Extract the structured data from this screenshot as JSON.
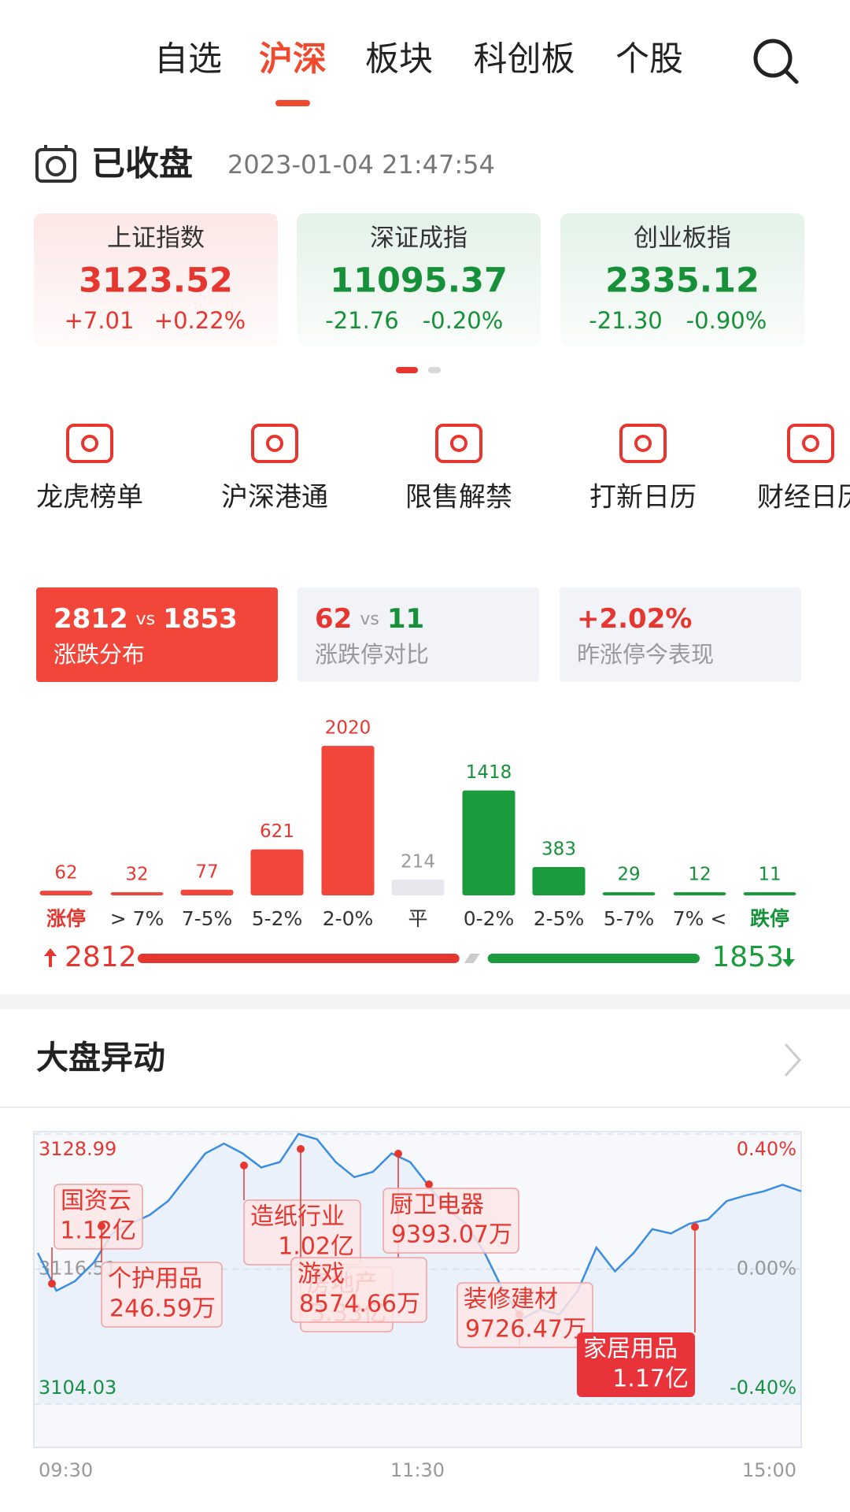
{
  "tabs": {
    "items": [
      "自选",
      "沪深",
      "板块",
      "科创板",
      "个股"
    ],
    "active": 1
  },
  "status": {
    "label": "已收盘",
    "datetime": "2023-01-04  21:47:54"
  },
  "indices": [
    {
      "name": "上证指数",
      "value": "3123.52",
      "change": "+7.01",
      "pct": "+0.22%",
      "color": "#e5372f"
    },
    {
      "name": "深证成指",
      "value": "11095.37",
      "change": "-21.76",
      "pct": "-0.20%",
      "color": "#16913a"
    },
    {
      "name": "创业板指",
      "value": "2335.12",
      "change": "-21.30",
      "pct": "-0.90%",
      "color": "#16913a"
    }
  ],
  "shortcuts": [
    "龙虎榜单",
    "沪深港通",
    "限售解禁",
    "打新日历",
    "财经日历"
  ],
  "summary_cards": [
    {
      "up": "2812",
      "vs": "vs",
      "down": "1853",
      "label": "涨跌分布"
    },
    {
      "up": "62",
      "vs": "vs",
      "down": "11",
      "label": "涨跌停对比"
    },
    {
      "value": "+2.02%",
      "label": "昨涨停今表现"
    }
  ],
  "section_title": "大盘异动",
  "chart_data": [
    {
      "type": "bar",
      "categories": [
        "涨停",
        "> 7%",
        "7-5%",
        "5-2%",
        "2-0%",
        "平",
        "0-2%",
        "2-5%",
        "5-7%",
        "7% <",
        "跌停"
      ],
      "values": [
        62,
        32,
        77,
        621,
        2020,
        214,
        1418,
        383,
        29,
        12,
        11
      ],
      "colors": [
        "#f2463a",
        "#f2463a",
        "#f2463a",
        "#f2463a",
        "#f2463a",
        "#e6e8ee",
        "#1a9b3c",
        "#1a9b3c",
        "#1a9b3c",
        "#1a9b3c",
        "#1a9b3c"
      ],
      "value_label_colors": [
        "#e5372f",
        "#e5372f",
        "#e5372f",
        "#e5372f",
        "#e5372f",
        "#999999",
        "#16913a",
        "#16913a",
        "#16913a",
        "#16913a",
        "#16913a"
      ],
      "category_colors": [
        "#e5372f",
        "#333333",
        "#333333",
        "#333333",
        "#333333",
        "#333333",
        "#333333",
        "#333333",
        "#333333",
        "#333333",
        "#16913a"
      ]
    },
    {
      "type": "split",
      "values": [
        2812,
        1853
      ],
      "colors": [
        "#e5372f",
        "#1a9b3c"
      ]
    },
    {
      "type": "line",
      "color": "#3b8de0",
      "values": [
        3118.0,
        3114.5,
        3115.4,
        3117.1,
        3119.8,
        3120.7,
        3121.5,
        3122.8,
        3125.0,
        3127.2,
        3128.1,
        3127.2,
        3125.9,
        3126.4,
        3129.0,
        3128.5,
        3126.4,
        3125.0,
        3125.5,
        3127.2,
        3126.4,
        3124.2,
        3122.0,
        3120.7,
        3118.0,
        3114.5,
        3111.9,
        3112.8,
        3112.3,
        3114.5,
        3118.5,
        3116.3,
        3118.0,
        3120.2,
        3119.8,
        3120.7,
        3121.1,
        3122.8,
        3123.3,
        3123.7,
        3124.3,
        3123.7
      ],
      "ylim": [
        3104.03,
        3128.99
      ],
      "yticks": [
        3104.03,
        3116.51,
        3128.99
      ],
      "y2lim": [
        -0.4,
        0.4
      ],
      "y2ticks": [
        {
          "value": -0.4,
          "label": "-0.40%"
        },
        {
          "value": 0,
          "label": "0.00%"
        },
        {
          "value": 0.4,
          "label": "0.40%"
        }
      ],
      "x_labels": [
        "09:30",
        "11:30",
        "15:00"
      ],
      "annotations": [
        {
          "label": "国资云",
          "amount": "1.12亿"
        },
        {
          "label": "个护用品",
          "amount": "246.59万"
        },
        {
          "label": "造纸行业",
          "amount": "1.02亿"
        },
        {
          "label": "房地产",
          "amount": "3.33亿"
        },
        {
          "label": "游戏",
          "amount": "8574.66万"
        },
        {
          "label": "厨卫电器",
          "amount": "9393.07万"
        },
        {
          "label": "装修建材",
          "amount": "9726.47万"
        },
        {
          "label": "家居用品",
          "amount": "1.17亿",
          "highlight": true
        }
      ]
    }
  ]
}
